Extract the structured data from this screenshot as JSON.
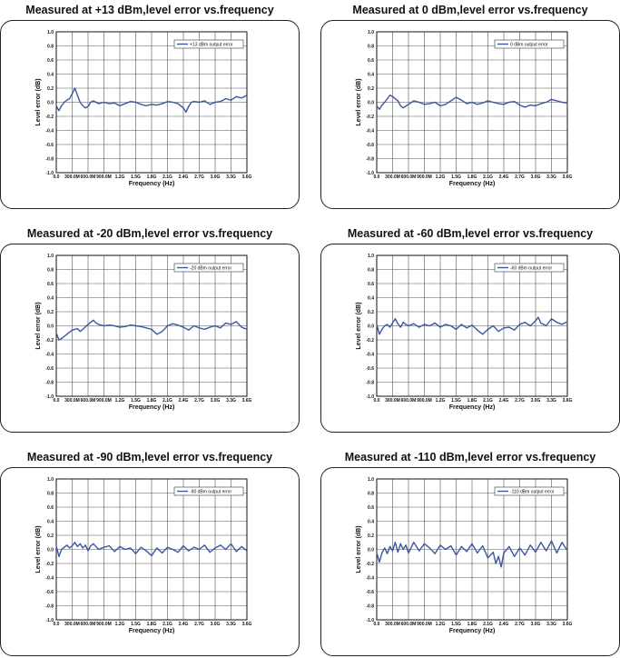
{
  "colors": {
    "series": "#3c56a0",
    "grid": "#555555",
    "frame": "#222222"
  },
  "chart_data": [
    {
      "type": "line",
      "title": "Measured at +13 dBm,level error vs.frequency",
      "xlabel": "Frequency (Hz)",
      "ylabel": "Level error (dB)",
      "xlim": [
        0,
        3600
      ],
      "ylim": [
        -1.0,
        1.0
      ],
      "x_ticks": [
        0,
        300,
        600,
        900,
        1200,
        1500,
        1800,
        2100,
        2400,
        2700,
        3000,
        3300,
        3600
      ],
      "x_tick_labels": [
        "0.0",
        "300.0M",
        "600.0M",
        "900.0M",
        "1.2G",
        "1.5G",
        "1.8G",
        "2.1G",
        "2.4G",
        "2.7G",
        "3.0G",
        "3.3G",
        "3.6G"
      ],
      "y_tick_labels": [
        "1.0",
        "0.8",
        "0.6",
        "0.4",
        "0.2",
        "0.0",
        "-0.2",
        "-0.4",
        "-0.6",
        "-0.8",
        "-1.0"
      ],
      "grid": true,
      "legend": "top-right",
      "series": [
        {
          "name": "+13 dBm output error",
          "x": [
            0,
            50,
            100,
            150,
            200,
            250,
            300,
            350,
            400,
            450,
            500,
            550,
            600,
            650,
            700,
            750,
            800,
            900,
            1000,
            1100,
            1200,
            1300,
            1400,
            1500,
            1600,
            1700,
            1800,
            1900,
            2000,
            2100,
            2200,
            2300,
            2400,
            2450,
            2500,
            2550,
            2600,
            2700,
            2800,
            2900,
            3000,
            3100,
            3200,
            3300,
            3400,
            3500,
            3600
          ],
          "y": [
            -0.05,
            -0.12,
            -0.05,
            0.0,
            0.03,
            0.05,
            0.12,
            0.2,
            0.1,
            0.0,
            -0.05,
            -0.08,
            -0.06,
            0.0,
            0.02,
            0.0,
            -0.02,
            0.0,
            -0.02,
            -0.01,
            -0.05,
            -0.02,
            0.01,
            0.0,
            -0.03,
            -0.05,
            -0.03,
            -0.04,
            -0.02,
            0.01,
            0.0,
            -0.02,
            -0.08,
            -0.14,
            -0.06,
            0.0,
            0.01,
            0.0,
            0.02,
            -0.03,
            0.0,
            0.01,
            0.05,
            0.03,
            0.08,
            0.06,
            0.1
          ]
        }
      ]
    },
    {
      "type": "line",
      "title": "Measured at 0 dBm,level error vs.frequency",
      "xlabel": "Frequency (Hz)",
      "ylabel": "Level error (dB)",
      "xlim": [
        0,
        3600
      ],
      "ylim": [
        -1.0,
        1.0
      ],
      "x_ticks": [
        0,
        300,
        600,
        900,
        1200,
        1500,
        1800,
        2100,
        2400,
        2700,
        3000,
        3300,
        3600
      ],
      "x_tick_labels": [
        "0.0",
        "300.0M",
        "600.0M",
        "900.0M",
        "1.2G",
        "1.5G",
        "1.8G",
        "2.1G",
        "2.4G",
        "2.7G",
        "3.0G",
        "3.3G",
        "3.6G"
      ],
      "y_tick_labels": [
        "1.0",
        "0.8",
        "0.6",
        "0.4",
        "0.2",
        "0.0",
        "-0.2",
        "-0.4",
        "-0.6",
        "-0.8",
        "-1.0"
      ],
      "grid": true,
      "legend": "top-right",
      "series": [
        {
          "name": "0 dBm output error",
          "x": [
            0,
            50,
            100,
            150,
            200,
            250,
            300,
            400,
            450,
            500,
            600,
            700,
            800,
            900,
            1000,
            1100,
            1200,
            1300,
            1400,
            1500,
            1600,
            1700,
            1800,
            1900,
            2000,
            2100,
            2200,
            2300,
            2400,
            2500,
            2600,
            2700,
            2800,
            2900,
            3000,
            3100,
            3200,
            3300,
            3400,
            3500,
            3600
          ],
          "y": [
            -0.05,
            -0.1,
            -0.04,
            0.0,
            0.05,
            0.1,
            0.08,
            0.02,
            -0.05,
            -0.08,
            -0.03,
            0.02,
            0.0,
            -0.03,
            -0.02,
            0.0,
            -0.05,
            -0.03,
            0.02,
            0.07,
            0.03,
            -0.02,
            0.0,
            -0.03,
            -0.01,
            0.02,
            0.0,
            -0.02,
            -0.03,
            0.0,
            0.01,
            -0.04,
            -0.07,
            -0.04,
            -0.05,
            -0.02,
            0.0,
            0.04,
            0.02,
            0.0,
            -0.01
          ]
        }
      ]
    },
    {
      "type": "line",
      "title": "Measured at -20 dBm,level error vs.frequency",
      "xlabel": "Frequency (Hz)",
      "ylabel": "Level error (dB)",
      "xlim": [
        0,
        3600
      ],
      "ylim": [
        -1.0,
        1.0
      ],
      "x_ticks": [
        0,
        300,
        600,
        900,
        1200,
        1500,
        1800,
        2100,
        2400,
        2700,
        3000,
        3300,
        3600
      ],
      "x_tick_labels": [
        "0.0",
        "300.0M",
        "600.0M",
        "900.0M",
        "1.2G",
        "1.5G",
        "1.8G",
        "2.1G",
        "2.4G",
        "2.7G",
        "3.0G",
        "3.3G",
        "3.6G"
      ],
      "y_tick_labels": [
        "1.0",
        "0.8",
        "0.6",
        "0.4",
        "0.2",
        "0.0",
        "-0.2",
        "-0.4",
        "-0.6",
        "-0.8",
        "-1.0"
      ],
      "grid": true,
      "legend": "top-right",
      "series": [
        {
          "name": "-20 dBm output error",
          "x": [
            0,
            50,
            100,
            150,
            200,
            300,
            400,
            450,
            500,
            600,
            700,
            750,
            800,
            900,
            1000,
            1100,
            1200,
            1300,
            1400,
            1500,
            1600,
            1700,
            1800,
            1900,
            2000,
            2100,
            2200,
            2300,
            2400,
            2500,
            2600,
            2700,
            2800,
            2900,
            3000,
            3100,
            3200,
            3300,
            3400,
            3500,
            3600
          ],
          "y": [
            -0.1,
            -0.2,
            -0.18,
            -0.15,
            -0.12,
            -0.06,
            -0.04,
            -0.08,
            -0.05,
            0.02,
            0.08,
            0.04,
            0.02,
            0.0,
            0.01,
            0.0,
            -0.02,
            -0.01,
            0.01,
            0.0,
            -0.01,
            -0.03,
            -0.05,
            -0.12,
            -0.08,
            0.0,
            0.03,
            0.01,
            -0.02,
            -0.06,
            0.0,
            -0.03,
            -0.05,
            -0.02,
            0.0,
            -0.03,
            0.04,
            0.02,
            0.06,
            -0.02,
            -0.05
          ]
        }
      ]
    },
    {
      "type": "line",
      "title": "Measured at -60 dBm,level error vs.frequency",
      "xlabel": "Frequency (Hz)",
      "ylabel": "Level error (dB)",
      "xlim": [
        0,
        3600
      ],
      "ylim": [
        -1.0,
        1.0
      ],
      "x_ticks": [
        0,
        300,
        600,
        900,
        1200,
        1500,
        1800,
        2100,
        2400,
        2700,
        3000,
        3300,
        3600
      ],
      "x_tick_labels": [
        "0.0",
        "300.0M",
        "600.0M",
        "900.0M",
        "1.2G",
        "1.5G",
        "1.8G",
        "2.1G",
        "2.4G",
        "2.7G",
        "3.0G",
        "3.3G",
        "3.6G"
      ],
      "y_tick_labels": [
        "1.0",
        "0.8",
        "0.6",
        "0.4",
        "0.2",
        "0.0",
        "-0.2",
        "-0.4",
        "-0.6",
        "-0.8",
        "-1.0"
      ],
      "grid": true,
      "legend": "top-right",
      "series": [
        {
          "name": "-60 dBm output error",
          "x": [
            0,
            50,
            100,
            150,
            200,
            250,
            300,
            350,
            400,
            450,
            500,
            550,
            600,
            700,
            800,
            900,
            1000,
            1100,
            1200,
            1300,
            1400,
            1500,
            1600,
            1700,
            1800,
            1900,
            2000,
            2100,
            2200,
            2300,
            2400,
            2500,
            2600,
            2700,
            2800,
            2900,
            3000,
            3050,
            3100,
            3200,
            3300,
            3400,
            3500,
            3600
          ],
          "y": [
            0.02,
            -0.12,
            -0.05,
            0.0,
            0.02,
            -0.02,
            0.04,
            0.1,
            0.03,
            -0.02,
            0.05,
            0.02,
            0.0,
            0.03,
            -0.02,
            0.02,
            0.0,
            0.04,
            -0.02,
            0.02,
            0.0,
            -0.05,
            0.02,
            -0.03,
            0.01,
            -0.06,
            -0.12,
            -0.05,
            0.0,
            -0.08,
            -0.03,
            -0.02,
            -0.06,
            0.02,
            0.05,
            0.0,
            0.07,
            0.12,
            0.04,
            0.0,
            0.1,
            0.05,
            0.02,
            0.06
          ]
        }
      ]
    },
    {
      "type": "line",
      "title": "Measured at -90 dBm,level error vs.frequency",
      "xlabel": "Frequency (Hz)",
      "ylabel": "Level error (dB)",
      "xlim": [
        0,
        3600
      ],
      "ylim": [
        -1.0,
        1.0
      ],
      "x_ticks": [
        0,
        300,
        600,
        900,
        1200,
        1500,
        1800,
        2100,
        2400,
        2700,
        3000,
        3300,
        3600
      ],
      "x_tick_labels": [
        "0.0",
        "300.0M",
        "600.0M",
        "900.0M",
        "1.2G",
        "1.5G",
        "1.8G",
        "2.1G",
        "2.4G",
        "2.7G",
        "3.0G",
        "3.3G",
        "3.6G"
      ],
      "y_tick_labels": [
        "1.0",
        "0.8",
        "0.6",
        "0.4",
        "0.2",
        "0.0",
        "-0.2",
        "-0.4",
        "-0.6",
        "-0.8",
        "-1.0"
      ],
      "grid": true,
      "legend": "top-right",
      "series": [
        {
          "name": "-90 dBm output error",
          "x": [
            0,
            50,
            100,
            150,
            200,
            250,
            300,
            350,
            400,
            450,
            500,
            550,
            600,
            650,
            700,
            800,
            900,
            1000,
            1100,
            1200,
            1300,
            1400,
            1500,
            1600,
            1700,
            1800,
            1900,
            2000,
            2100,
            2200,
            2300,
            2400,
            2500,
            2600,
            2700,
            2800,
            2900,
            3000,
            3100,
            3200,
            3300,
            3400,
            3500,
            3600
          ],
          "y": [
            0.05,
            -0.1,
            0.0,
            0.03,
            0.06,
            0.02,
            0.05,
            0.1,
            0.04,
            0.08,
            0.02,
            0.06,
            -0.02,
            0.05,
            0.08,
            0.0,
            0.03,
            0.05,
            -0.03,
            0.04,
            0.0,
            0.02,
            -0.06,
            0.03,
            -0.02,
            -0.09,
            0.02,
            -0.05,
            0.03,
            0.0,
            -0.04,
            0.05,
            -0.02,
            0.03,
            0.0,
            0.06,
            -0.04,
            0.02,
            0.06,
            0.0,
            0.08,
            -0.03,
            0.04,
            -0.02
          ]
        }
      ]
    },
    {
      "type": "line",
      "title": "Measured at -110 dBm,level error vs.frequency",
      "xlabel": "Frequency (Hz)",
      "ylabel": "Level error (dB)",
      "xlim": [
        0,
        3600
      ],
      "ylim": [
        -1.0,
        1.0
      ],
      "x_ticks": [
        0,
        300,
        600,
        900,
        1200,
        1500,
        1800,
        2100,
        2400,
        2700,
        3000,
        3300,
        3600
      ],
      "x_tick_labels": [
        "0.0",
        "300.0M",
        "600.0M",
        "900.0M",
        "1.2G",
        "1.5G",
        "1.8G",
        "2.1G",
        "2.4G",
        "2.7G",
        "3.0G",
        "3.3G",
        "3.6G"
      ],
      "y_tick_labels": [
        "1.0",
        "0.8",
        "0.6",
        "0.4",
        "0.2",
        "0.0",
        "-0.2",
        "-0.4",
        "-0.6",
        "-0.8",
        "-1.0"
      ],
      "grid": true,
      "legend": "top-right",
      "series": [
        {
          "name": "-110 dBm output error",
          "x": [
            0,
            50,
            100,
            150,
            200,
            250,
            300,
            350,
            400,
            450,
            500,
            550,
            600,
            700,
            800,
            900,
            1000,
            1100,
            1200,
            1300,
            1400,
            1500,
            1600,
            1700,
            1800,
            1900,
            2000,
            2100,
            2200,
            2250,
            2300,
            2350,
            2400,
            2500,
            2600,
            2700,
            2800,
            2900,
            3000,
            3100,
            3200,
            3300,
            3400,
            3500,
            3600
          ],
          "y": [
            -0.05,
            -0.18,
            -0.05,
            0.02,
            -0.06,
            0.04,
            -0.02,
            0.1,
            -0.04,
            0.08,
            0.0,
            0.06,
            -0.05,
            0.1,
            -0.02,
            0.08,
            0.02,
            -0.06,
            0.06,
            0.0,
            0.05,
            -0.08,
            0.04,
            -0.03,
            0.08,
            -0.05,
            0.05,
            -0.12,
            -0.04,
            -0.2,
            -0.1,
            -0.25,
            -0.05,
            0.04,
            -0.1,
            0.02,
            -0.08,
            0.06,
            -0.04,
            0.1,
            -0.02,
            0.12,
            -0.05,
            0.1,
            -0.02
          ]
        }
      ]
    }
  ]
}
